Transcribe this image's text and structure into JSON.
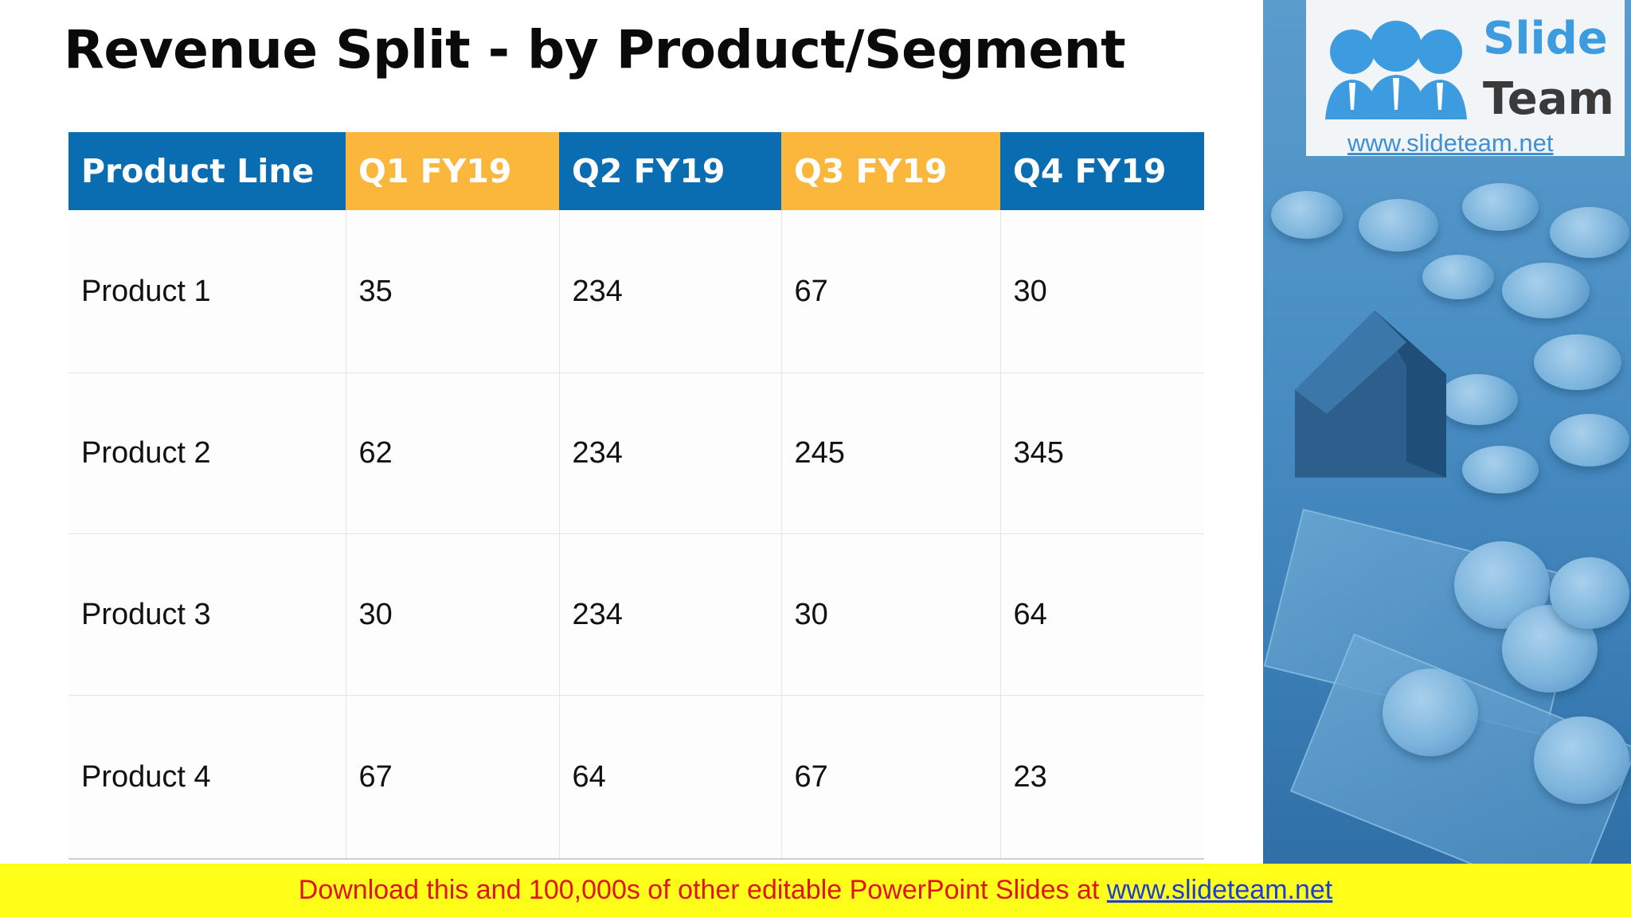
{
  "slide": {
    "title": "Revenue Split - by Product/Segment"
  },
  "table": {
    "headers": [
      "Product Line",
      "Q1 FY19",
      "Q2 FY19",
      "Q3 FY19",
      "Q4 FY19"
    ],
    "header_colors": [
      "#0a6db1",
      "#fbb73b",
      "#0a6db1",
      "#fbb73b",
      "#0a6db1"
    ],
    "rows": [
      [
        "Product 1",
        "35",
        "234",
        "67",
        "30"
      ],
      [
        "Product 2",
        "62",
        "234",
        "245",
        "345"
      ],
      [
        "Product 3",
        "30",
        "234",
        "30",
        "64"
      ],
      [
        "Product 4",
        "67",
        "64",
        "67",
        "23"
      ]
    ]
  },
  "logo": {
    "word1": "Slide",
    "word2": "Team",
    "url": "www.slideteam.net"
  },
  "banner": {
    "message": "Download this and 100,000s of other editable PowerPoint Slides at ",
    "link": "www.slideteam.net",
    "background": "#ffff1a",
    "text_color": "#e0141b",
    "link_color": "#1a3dd6"
  }
}
